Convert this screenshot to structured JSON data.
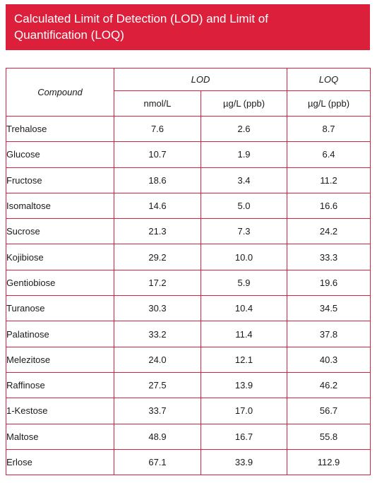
{
  "header": {
    "title_line1": "Calculated Limit of Detection (LOD) and Limit of",
    "title_line2": "Quantification (LOQ)"
  },
  "table": {
    "compound_header": "Compound",
    "group_headers": [
      "LOD",
      "LOQ"
    ],
    "unit_headers": [
      "nmol/L",
      "µg/L (ppb)",
      "µg/L (ppb)"
    ],
    "rows": [
      {
        "compound": "Trehalose",
        "lod_nmol": "7.6",
        "lod_ug": "2.6",
        "loq_ug": "8.7"
      },
      {
        "compound": "Glucose",
        "lod_nmol": "10.7",
        "lod_ug": "1.9",
        "loq_ug": "6.4"
      },
      {
        "compound": "Fructose",
        "lod_nmol": "18.6",
        "lod_ug": "3.4",
        "loq_ug": "11.2"
      },
      {
        "compound": "Isomaltose",
        "lod_nmol": "14.6",
        "lod_ug": "5.0",
        "loq_ug": "16.6"
      },
      {
        "compound": "Sucrose",
        "lod_nmol": "21.3",
        "lod_ug": "7.3",
        "loq_ug": "24.2"
      },
      {
        "compound": "Kojibiose",
        "lod_nmol": "29.2",
        "lod_ug": "10.0",
        "loq_ug": "33.3"
      },
      {
        "compound": "Gentiobiose",
        "lod_nmol": "17.2",
        "lod_ug": "5.9",
        "loq_ug": "19.6"
      },
      {
        "compound": "Turanose",
        "lod_nmol": "30.3",
        "lod_ug": "10.4",
        "loq_ug": "34.5"
      },
      {
        "compound": "Palatinose",
        "lod_nmol": "33.2",
        "lod_ug": "11.4",
        "loq_ug": "37.8"
      },
      {
        "compound": "Melezitose",
        "lod_nmol": "24.0",
        "lod_ug": "12.1",
        "loq_ug": "40.3"
      },
      {
        "compound": "Raffinose",
        "lod_nmol": "27.5",
        "lod_ug": "13.9",
        "loq_ug": "46.2"
      },
      {
        "compound": "1-Kestose",
        "lod_nmol": "33.7",
        "lod_ug": "17.0",
        "loq_ug": "56.7"
      },
      {
        "compound": "Maltose",
        "lod_nmol": "48.9",
        "lod_ug": "16.7",
        "loq_ug": "55.8"
      },
      {
        "compound": "Erlose",
        "lod_nmol": "67.1",
        "lod_ug": "33.9",
        "loq_ug": "112.9"
      }
    ]
  },
  "colors": {
    "accent": "#dc1f3b",
    "border": "#d6233f"
  }
}
